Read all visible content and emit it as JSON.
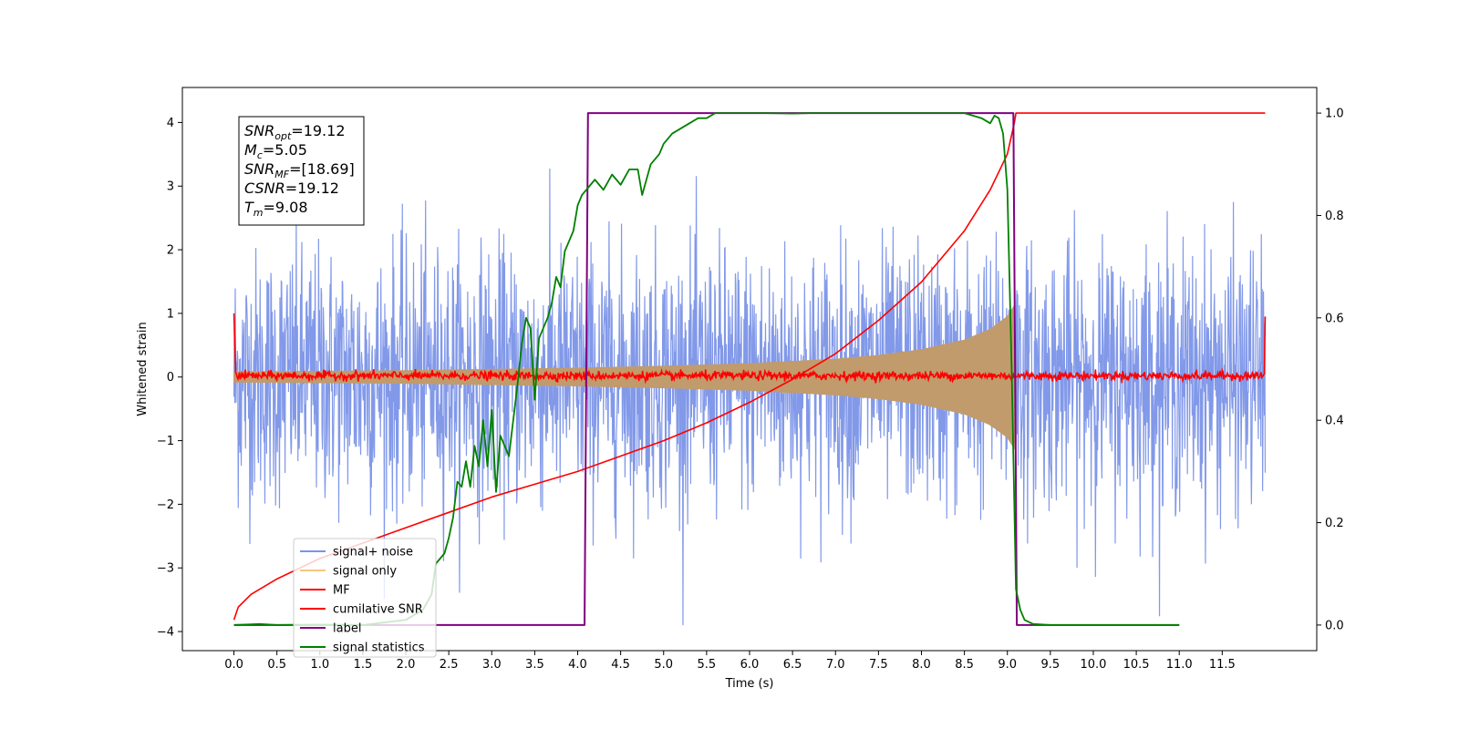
{
  "chart_data": {
    "type": "line",
    "title": "",
    "xlabel": "Time (s)",
    "ylabel": "Whitened strain",
    "xlim": [
      -0.6,
      12.6
    ],
    "ylim": [
      -4.3,
      4.55
    ],
    "y2lim": [
      -0.05,
      1.05
    ],
    "grid": false,
    "legend_position": "lower-left",
    "x_ticks": [
      0.0,
      0.5,
      1.0,
      1.5,
      2.0,
      2.5,
      3.0,
      3.5,
      4.0,
      4.5,
      5.0,
      5.5,
      6.0,
      6.5,
      7.0,
      7.5,
      8.0,
      8.5,
      9.0,
      9.5,
      10.0,
      10.5,
      11.0,
      11.5
    ],
    "x_tick_labels": [
      "0.0",
      "0.5",
      "1.0",
      "1.5",
      "2.0",
      "2.5",
      "3.0",
      "3.5",
      "4.0",
      "4.5",
      "5.0",
      "5.5",
      "6.0",
      "6.5",
      "7.0",
      "7.5",
      "8.0",
      "8.5",
      "9.0",
      "9.5",
      "10.0",
      "10.5",
      "11.0",
      "11.5"
    ],
    "y_ticks": [
      -4,
      -3,
      -2,
      -1,
      0,
      1,
      2,
      3,
      4
    ],
    "y_tick_labels": [
      "−4",
      "−3",
      "−2",
      "−1",
      "0",
      "1",
      "2",
      "3",
      "4"
    ],
    "y2_ticks": [
      0.0,
      0.2,
      0.4,
      0.6,
      0.8,
      1.0
    ],
    "y2_tick_labels": [
      "0.0",
      "0.2",
      "0.4",
      "0.6",
      "0.8",
      "1.0"
    ],
    "annotation": {
      "lines": [
        {
          "sym": "SNR",
          "sub": "opt",
          "val": "=19.12"
        },
        {
          "sym": "M",
          "sub": "c",
          "val": "=5.05"
        },
        {
          "sym": "SNR",
          "sub": "MF",
          "val": "=[18.69]"
        },
        {
          "sym": "CSNR",
          "sub": "",
          "val": "=19.12"
        },
        {
          "sym": "T",
          "sub": "m",
          "val": "=9.08"
        }
      ]
    },
    "legend": [
      {
        "label": "signal+ noise",
        "color": "#7b94e8"
      },
      {
        "label": "signal only",
        "color": "#f5c77e"
      },
      {
        "label": "MF",
        "color": "#ff0000"
      },
      {
        "label": "cumilative SNR",
        "color": "#ff0000"
      },
      {
        "label": "label",
        "color": "#800080"
      },
      {
        "label": "signal statistics",
        "color": "#008000"
      }
    ],
    "series": [
      {
        "name": "signal+ noise",
        "axis": "left",
        "color": "#7b94e8",
        "t_start": 0.0,
        "t_end": 12.0,
        "noise_sigma": 1.0,
        "display_range": [
          -3.9,
          4.15
        ]
      },
      {
        "name": "signal only",
        "axis": "left",
        "color": "#c19b6c",
        "envelope": {
          "t": [
            0.0,
            1.0,
            2.0,
            3.0,
            4.0,
            5.0,
            6.0,
            7.0,
            7.5,
            8.0,
            8.5,
            8.8,
            9.0,
            9.08,
            9.1
          ],
          "amp": [
            0.08,
            0.09,
            0.1,
            0.12,
            0.14,
            0.17,
            0.21,
            0.28,
            0.34,
            0.43,
            0.58,
            0.75,
            0.95,
            1.12,
            0.0
          ]
        }
      },
      {
        "name": "MF",
        "axis": "left",
        "color": "#ff0000",
        "baseline": 0.02,
        "noise_amp": 0.05,
        "spike_start": 1.0,
        "spike_end": 0.95
      },
      {
        "name": "cumilative SNR",
        "axis": "right",
        "color": "#ff0000",
        "x": [
          0.0,
          0.05,
          0.2,
          0.5,
          1.0,
          1.5,
          2.0,
          2.5,
          3.0,
          3.5,
          4.0,
          4.5,
          5.0,
          5.5,
          6.0,
          6.5,
          7.0,
          7.5,
          8.0,
          8.5,
          8.8,
          9.0,
          9.08,
          9.1,
          12.0
        ],
        "y": [
          0.01,
          0.035,
          0.06,
          0.09,
          0.13,
          0.16,
          0.19,
          0.22,
          0.25,
          0.275,
          0.3,
          0.33,
          0.36,
          0.395,
          0.435,
          0.48,
          0.53,
          0.595,
          0.67,
          0.77,
          0.85,
          0.92,
          0.98,
          1.0,
          1.0
        ]
      },
      {
        "name": "label",
        "axis": "right",
        "color": "#800080",
        "x": [
          0.0,
          4.08,
          4.12,
          9.07,
          9.11,
          11.0
        ],
        "y": [
          0.0,
          0.0,
          1.0,
          1.0,
          0.0,
          0.0
        ]
      },
      {
        "name": "signal statistics",
        "axis": "right",
        "color": "#008000",
        "x": [
          0.0,
          0.3,
          0.5,
          1.0,
          1.5,
          2.0,
          2.2,
          2.3,
          2.35,
          2.45,
          2.5,
          2.55,
          2.6,
          2.65,
          2.7,
          2.75,
          2.8,
          2.85,
          2.9,
          2.95,
          3.0,
          3.05,
          3.1,
          3.15,
          3.2,
          3.25,
          3.3,
          3.35,
          3.4,
          3.45,
          3.5,
          3.55,
          3.6,
          3.65,
          3.7,
          3.75,
          3.8,
          3.85,
          3.9,
          3.95,
          4.0,
          4.05,
          4.1,
          4.15,
          4.2,
          4.3,
          4.4,
          4.5,
          4.6,
          4.7,
          4.75,
          4.85,
          4.95,
          5.0,
          5.1,
          5.2,
          5.3,
          5.4,
          5.5,
          5.6,
          5.8,
          6.0,
          6.2,
          6.5,
          6.7,
          7.0,
          7.5,
          8.0,
          8.5,
          8.7,
          8.8,
          8.85,
          8.9,
          8.95,
          9.0,
          9.05,
          9.1,
          9.15,
          9.2,
          9.3,
          9.5,
          10.0,
          10.5,
          11.0
        ],
        "y": [
          0.0,
          0.002,
          0.0,
          0.001,
          0.0,
          0.01,
          0.03,
          0.06,
          0.12,
          0.14,
          0.17,
          0.21,
          0.28,
          0.27,
          0.32,
          0.27,
          0.35,
          0.31,
          0.4,
          0.31,
          0.42,
          0.26,
          0.37,
          0.35,
          0.33,
          0.4,
          0.47,
          0.55,
          0.6,
          0.58,
          0.44,
          0.56,
          0.58,
          0.6,
          0.63,
          0.68,
          0.66,
          0.73,
          0.75,
          0.77,
          0.82,
          0.84,
          0.85,
          0.86,
          0.87,
          0.85,
          0.88,
          0.86,
          0.89,
          0.89,
          0.84,
          0.9,
          0.92,
          0.94,
          0.96,
          0.97,
          0.98,
          0.99,
          0.99,
          1.0,
          1.0,
          1.0,
          1.0,
          0.999,
          1.0,
          1.0,
          1.0,
          1.0,
          1.0,
          0.99,
          0.98,
          0.995,
          0.99,
          0.96,
          0.85,
          0.5,
          0.07,
          0.03,
          0.01,
          0.002,
          0.0,
          0.0,
          0.0,
          0.0
        ]
      }
    ]
  }
}
